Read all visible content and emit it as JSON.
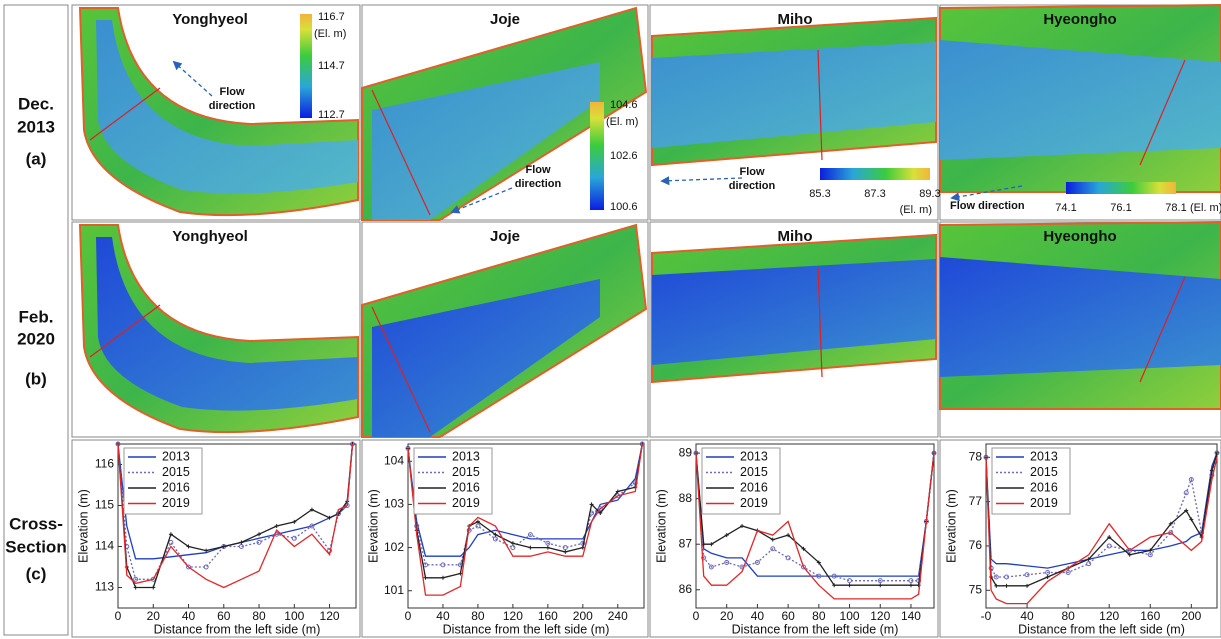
{
  "panel": {
    "rows": [
      {
        "lines": [
          "Dec.",
          "2013"
        ],
        "tag": "(a)"
      },
      {
        "lines": [
          "Feb.",
          "2020"
        ],
        "tag": "(b)"
      },
      {
        "lines": [
          "Cross-",
          "Section"
        ],
        "tag": "(c)"
      }
    ],
    "sites": [
      {
        "name": "Yonghyeol",
        "flow": [
          "Flow",
          "direction"
        ],
        "colorbar": {
          "range": [
            112.7,
            116.7
          ],
          "ticks": [
            116.7,
            114.7,
            112.7
          ],
          "unit": "(El. m)"
        }
      },
      {
        "name": "Joje",
        "flow": [
          "Flow",
          "direction"
        ],
        "colorbar": {
          "range": [
            100.6,
            104.6
          ],
          "ticks": [
            104.6,
            102.6,
            100.6
          ],
          "unit": "(El. m)"
        }
      },
      {
        "name": "Miho",
        "flow": [
          "Flow",
          "direction"
        ],
        "colorbar": {
          "range": [
            85.3,
            89.3
          ],
          "ticks": [
            85.3,
            87.3,
            89.3
          ],
          "unit": "(El. m)"
        }
      },
      {
        "name": "Hyeongho",
        "flow": [
          "Flow direction"
        ],
        "colorbar": {
          "range": [
            74.1,
            78.1
          ],
          "ticks": [
            74.1,
            76.1,
            78.1
          ],
          "unit": "(El. m)"
        }
      }
    ]
  },
  "chart_data": [
    {
      "type": "line",
      "x_label": "Distance from the left side (m)",
      "y_label": "Elevation (m)",
      "x": [
        0,
        5,
        10,
        20,
        30,
        40,
        50,
        60,
        70,
        80,
        90,
        100,
        110,
        120,
        125,
        130,
        133
      ],
      "xlim": [
        0,
        135
      ],
      "xticks": [
        0,
        20,
        40,
        60,
        80,
        100,
        120
      ],
      "ylim": [
        112.5,
        116.5
      ],
      "yticks": [
        113,
        114,
        115,
        116
      ],
      "series": [
        {
          "name": "2013",
          "color": "#1f3fbf",
          "values": [
            116.5,
            114.5,
            113.7,
            113.7,
            113.75,
            113.8,
            113.85,
            114.0,
            114.1,
            114.2,
            114.3,
            114.4,
            114.5,
            114.7,
            114.8,
            115.0,
            116.5
          ]
        },
        {
          "name": "2015",
          "color": "#6b6bb8",
          "line_style": "dotted",
          "marker": "circle",
          "values": [
            116.5,
            114.0,
            113.2,
            113.2,
            114.1,
            113.5,
            113.5,
            114.0,
            114.0,
            114.1,
            114.3,
            114.2,
            114.5,
            113.9,
            114.8,
            115.0,
            116.5
          ]
        },
        {
          "name": "2016",
          "color": "#222222",
          "marker": "plus",
          "values": [
            116.5,
            113.5,
            113.0,
            113.0,
            114.3,
            114.0,
            113.9,
            114.0,
            114.1,
            114.3,
            114.5,
            114.6,
            114.9,
            114.7,
            114.8,
            115.1,
            116.5
          ]
        },
        {
          "name": "2019",
          "color": "#e0282a",
          "values": [
            116.5,
            113.3,
            113.1,
            113.2,
            114.0,
            113.5,
            113.2,
            113.0,
            113.2,
            113.4,
            114.4,
            114.0,
            114.3,
            113.8,
            114.9,
            115.0,
            116.5
          ]
        }
      ]
    },
    {
      "type": "line",
      "x_label": "Distance from the left side (m)",
      "y_label": "Elevation (m)",
      "x": [
        0,
        10,
        20,
        40,
        60,
        70,
        80,
        100,
        120,
        140,
        160,
        180,
        200,
        210,
        220,
        240,
        260,
        268
      ],
      "xlim": [
        0,
        270
      ],
      "xticks": [
        0,
        40,
        80,
        120,
        160,
        200,
        240
      ],
      "ylim": [
        100.6,
        104.4
      ],
      "yticks": [
        101,
        102,
        103,
        104
      ],
      "series": [
        {
          "name": "2013",
          "color": "#1f3fbf",
          "values": [
            104.3,
            102.6,
            101.8,
            101.8,
            101.8,
            102.0,
            102.3,
            102.4,
            102.3,
            102.2,
            102.2,
            102.2,
            102.2,
            102.6,
            103.0,
            103.1,
            103.6,
            104.4
          ]
        },
        {
          "name": "2015",
          "color": "#6b6bb8",
          "line_style": "dotted",
          "marker": "circle",
          "values": [
            104.3,
            102.5,
            101.6,
            101.6,
            101.6,
            102.4,
            102.5,
            102.2,
            102.0,
            102.3,
            102.1,
            102.0,
            102.1,
            102.8,
            102.9,
            103.2,
            103.5,
            104.4
          ]
        },
        {
          "name": "2016",
          "color": "#222222",
          "marker": "plus",
          "values": [
            104.3,
            102.4,
            101.3,
            101.3,
            101.4,
            102.5,
            102.6,
            102.3,
            102.1,
            102.0,
            102.0,
            101.9,
            102.0,
            103.0,
            102.8,
            103.3,
            103.4,
            104.4
          ]
        },
        {
          "name": "2019",
          "color": "#e0282a",
          "values": [
            104.3,
            102.3,
            100.9,
            100.9,
            101.1,
            102.5,
            102.7,
            102.5,
            101.8,
            101.8,
            101.9,
            101.8,
            101.8,
            102.6,
            102.9,
            103.2,
            103.3,
            104.4
          ]
        }
      ]
    },
    {
      "type": "line",
      "x_label": "Distance from the left side (m)",
      "y_label": "Elevation (m)",
      "x": [
        0,
        5,
        10,
        20,
        30,
        40,
        50,
        60,
        70,
        80,
        90,
        100,
        120,
        140,
        145,
        150,
        155
      ],
      "xlim": [
        0,
        155
      ],
      "xticks": [
        0,
        20,
        40,
        60,
        80,
        100,
        120,
        140
      ],
      "ylim": [
        85.6,
        89.2
      ],
      "yticks": [
        86,
        87,
        88,
        89
      ],
      "series": [
        {
          "name": "2013",
          "color": "#1f3fbf",
          "values": [
            89,
            86.9,
            86.8,
            86.7,
            86.7,
            86.3,
            86.3,
            86.3,
            86.3,
            86.3,
            86.3,
            86.3,
            86.3,
            86.3,
            86.3,
            87.5,
            89
          ]
        },
        {
          "name": "2015",
          "color": "#6b6bb8",
          "line_style": "dotted",
          "marker": "circle",
          "values": [
            89,
            86.7,
            86.5,
            86.6,
            86.5,
            86.6,
            86.9,
            86.7,
            86.5,
            86.3,
            86.3,
            86.2,
            86.2,
            86.2,
            86.2,
            87.5,
            89
          ]
        },
        {
          "name": "2016",
          "color": "#222222",
          "marker": "plus",
          "values": [
            89,
            87.0,
            87.0,
            87.2,
            87.4,
            87.3,
            87.1,
            87.2,
            86.9,
            86.6,
            86.1,
            86.1,
            86.1,
            86.1,
            86.1,
            87.5,
            89
          ]
        },
        {
          "name": "2019",
          "color": "#e0282a",
          "values": [
            89,
            86.3,
            86.1,
            86.1,
            86.4,
            87.3,
            87.2,
            87.5,
            86.5,
            86.1,
            85.8,
            85.8,
            85.8,
            85.8,
            85.9,
            87.5,
            89
          ]
        }
      ]
    },
    {
      "type": "line",
      "x_label": "Distance from the left side (m)",
      "y_label": "Elevation (m)",
      "x": [
        0,
        5,
        10,
        20,
        40,
        60,
        80,
        100,
        120,
        140,
        160,
        180,
        195,
        200,
        210,
        220,
        225
      ],
      "xlim": [
        0,
        225
      ],
      "xticks": [
        {
          "value": 0,
          "label": "-0"
        },
        40,
        80,
        120,
        160,
        200
      ],
      "ylim": [
        74.6,
        78.3
      ],
      "yticks": [
        75,
        76,
        77,
        78
      ],
      "series": [
        {
          "name": "2013",
          "color": "#1f3fbf",
          "values": [
            78,
            75.7,
            75.6,
            75.6,
            75.55,
            75.5,
            75.6,
            75.7,
            75.8,
            75.9,
            75.9,
            76,
            76.1,
            76.2,
            76.3,
            77.8,
            78.1
          ]
        },
        {
          "name": "2015",
          "color": "#6b6bb8",
          "line_style": "dotted",
          "marker": "circle",
          "values": [
            78,
            75.5,
            75.3,
            75.3,
            75.35,
            75.4,
            75.4,
            75.6,
            76.0,
            75.9,
            75.8,
            76.3,
            77.2,
            77.5,
            76.3,
            77.6,
            78.1
          ]
        },
        {
          "name": "2016",
          "color": "#222222",
          "marker": "plus",
          "values": [
            78,
            75.3,
            75.1,
            75.1,
            75.1,
            75.3,
            75.5,
            75.7,
            76.2,
            75.8,
            75.9,
            76.5,
            76.8,
            76.6,
            76.2,
            77.7,
            78.1
          ]
        },
        {
          "name": "2019",
          "color": "#e0282a",
          "values": [
            78,
            75.0,
            74.8,
            74.7,
            74.7,
            75.2,
            75.5,
            75.8,
            76.5,
            75.9,
            76.2,
            76.3,
            76.0,
            75.9,
            76.1,
            77.5,
            78.0
          ]
        }
      ]
    }
  ]
}
